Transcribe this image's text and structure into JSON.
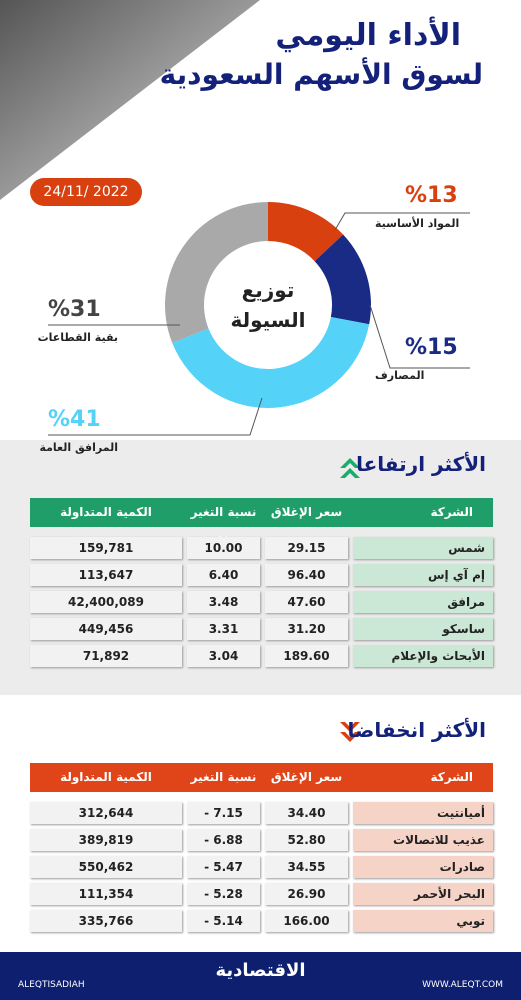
{
  "header": {
    "title_lines": [
      "الأداء اليومي",
      "لسوق الأسهم السعودية"
    ],
    "date": "24/11/ 2022"
  },
  "donut": {
    "center_lines": [
      "توزيع",
      "السيولة"
    ],
    "segments": [
      {
        "name": "المواد الأساسية",
        "value": 13,
        "label": "%13",
        "color": "#d9400f"
      },
      {
        "name": "المصارف",
        "value": 15,
        "label": "%15",
        "color": "#1a2b86"
      },
      {
        "name": "المرافق العامة",
        "value": 41,
        "label": "%41",
        "color": "#55d2f7"
      },
      {
        "name": "بقية القطاعات",
        "value": 31,
        "label": "%31",
        "color": "#a9a9a9"
      }
    ]
  },
  "gainers": {
    "title": "الأكثر ارتفاعا",
    "columns": [
      "الشركة",
      "سعر الإغلاق",
      "نسبة التغير %",
      "الكمية المتداولة"
    ],
    "rows": [
      [
        "شمس",
        "29.15",
        "10.00",
        "159,781"
      ],
      [
        "إم آي إس",
        "96.40",
        "6.40",
        "113,647"
      ],
      [
        "مرافق",
        "47.60",
        "3.48",
        "42,400,089"
      ],
      [
        "ساسكو",
        "31.20",
        "3.31",
        "449,456"
      ],
      [
        "الأبحاث والإعلام",
        "189.60",
        "3.04",
        "71,892"
      ]
    ]
  },
  "losers": {
    "title": "الأكثر انخفاضا",
    "columns": [
      "الشركة",
      "سعر الإغلاق",
      "نسبة التغير %",
      "الكمية المتداولة"
    ],
    "rows": [
      [
        "أميانتيت",
        "34.40",
        "- 7.15",
        "312,644"
      ],
      [
        "عذيب للاتصالات",
        "52.80",
        "- 6.88",
        "389,819"
      ],
      [
        "صادرات",
        "34.55",
        "- 5.47",
        "550,462"
      ],
      [
        "البحر الأحمر",
        "26.90",
        "- 5.28",
        "111,354"
      ],
      [
        "توبي",
        "166.00",
        "- 5.14",
        "335,766"
      ]
    ]
  },
  "footer": {
    "brand": "الاقتصادية",
    "site": "WWW.ALEQT.COM",
    "handle": "ALEQTISADIAH"
  }
}
